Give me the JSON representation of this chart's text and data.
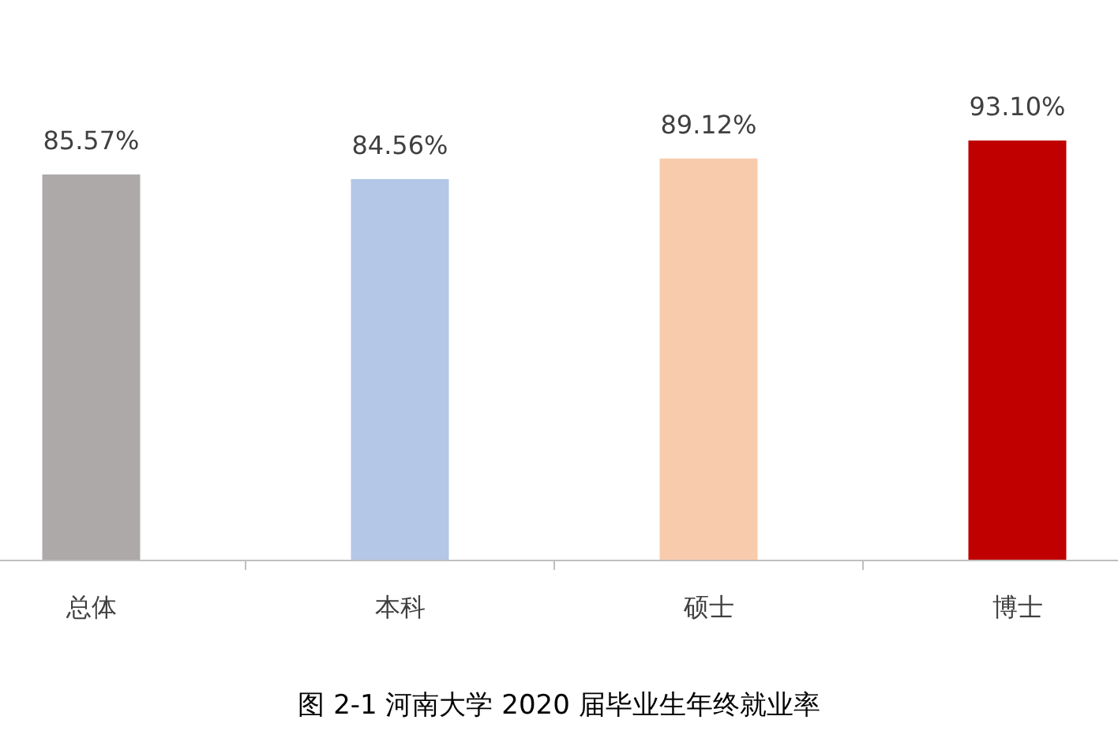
{
  "chart_data": {
    "type": "bar",
    "title": "图 2-1  河南大学 2020 届毕业生年终就业率",
    "categories": [
      "总体",
      "本科",
      "硕士",
      "博士"
    ],
    "values": [
      85.57,
      84.56,
      89.12,
      93.1
    ],
    "colors": [
      "#aea9a9",
      "#b4c7e7",
      "#f8cbad",
      "#c00000"
    ],
    "value_labels": [
      "85.57%",
      "84.56%",
      "89.12%",
      "93.10%"
    ]
  }
}
